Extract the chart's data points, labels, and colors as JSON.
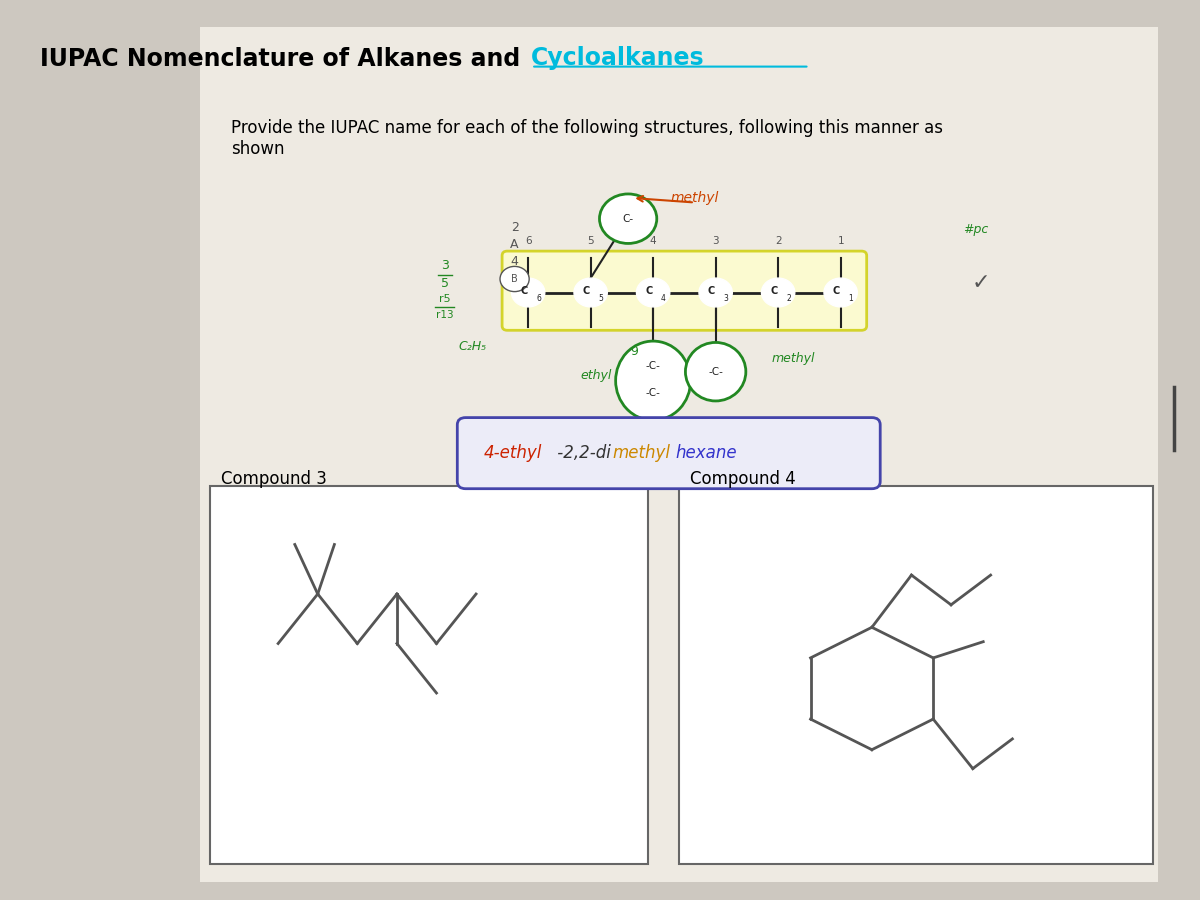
{
  "title_black": "IUPAC Nomenclature of Alkanes and ",
  "title_cyan": "Cycloalkanes",
  "subtitle": "Provide the IUPAC name for each of the following structures, following this manner as\nshown",
  "bg_color": "#cdc8c0",
  "paper_color": "#eeeae2",
  "compound3_label": "Compound 3",
  "compound4_label": "Compound 4",
  "chain_color": "#222222",
  "green_color": "#228822",
  "orange_color": "#cc4400",
  "cyan_color": "#00bbdd",
  "blue_color": "#3333cc",
  "yellow_hl": "#ffffcc",
  "yellow_edge": "#cccc00"
}
